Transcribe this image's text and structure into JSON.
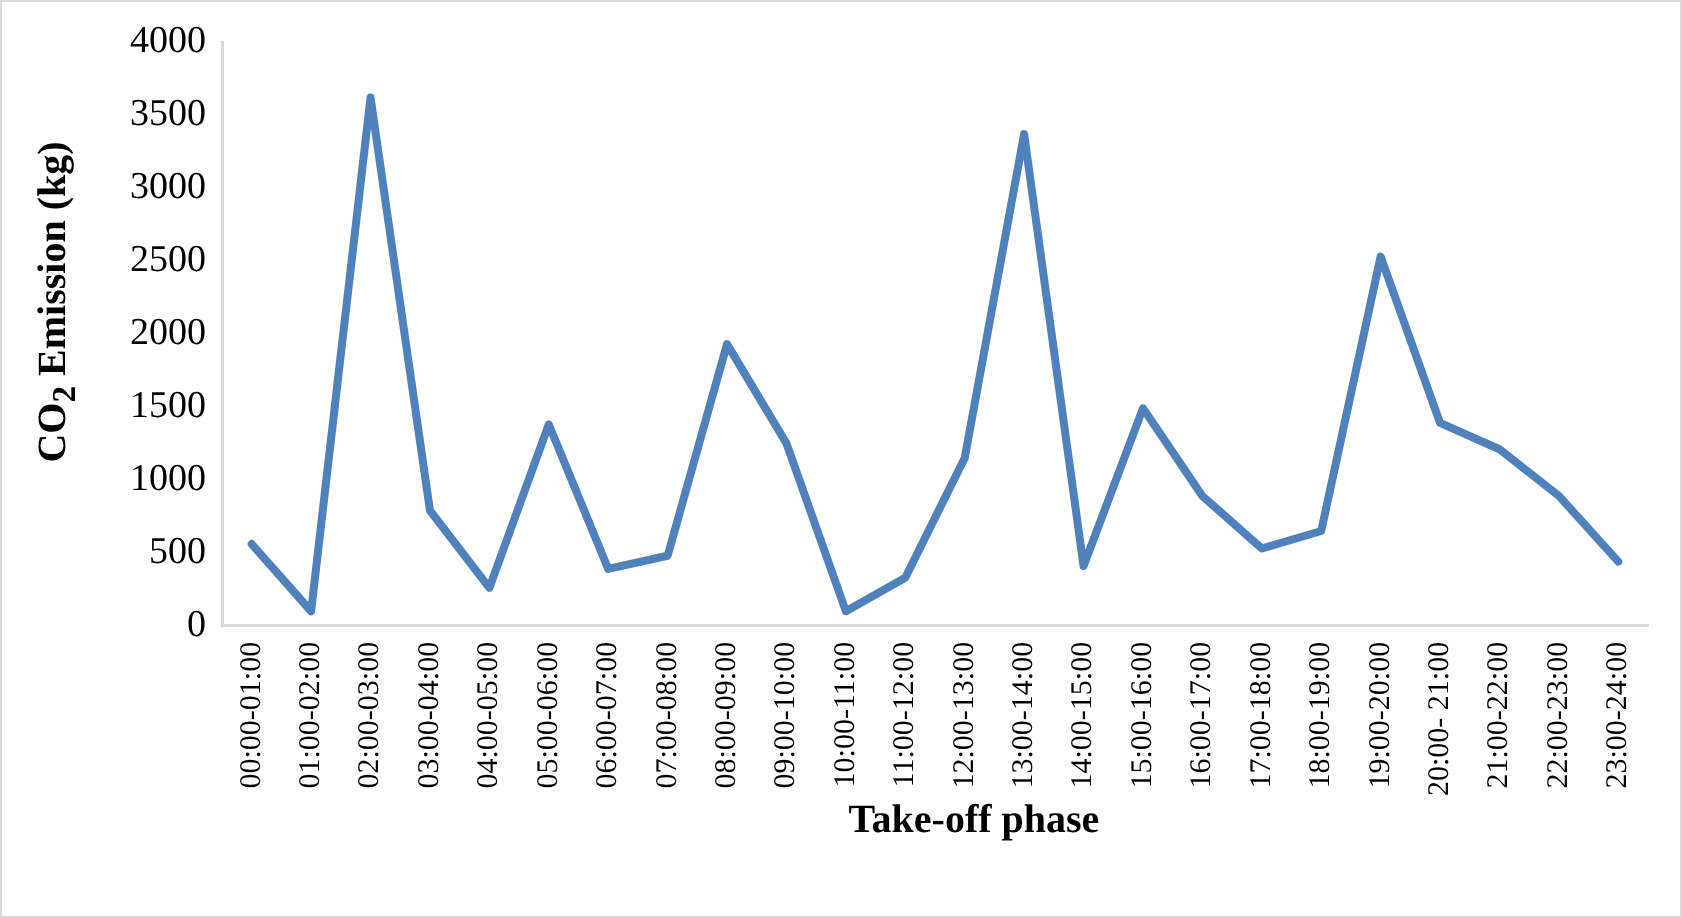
{
  "chart_data": {
    "type": "line",
    "xlabel": "Take-off phase",
    "ylabel": "CO$_{2}$ Emission (kg)",
    "categories": [
      "00:00-01:00",
      "01:00-02:00",
      "02:00-03:00",
      "03:00-04:00",
      "04:00-05:00",
      "05:00-06:00",
      "06:00-07:00",
      "07:00-08:00",
      "08:00-09:00",
      "09:00-10:00",
      "10:00-11:00",
      "11:00-12:00",
      "12:00-13:00",
      "13:00-14:00",
      "14:00-15:00",
      "15:00-16:00",
      "16:00-17:00",
      "17:00-18:00",
      "18:00-19:00",
      "19:00-20:00",
      "20:00- 21:00",
      "21:00-22:00",
      "22:00-23:00",
      "23:00-24:00"
    ],
    "series": [
      {
        "color": "#4f81bd",
        "values": [
          560,
          100,
          3620,
          790,
          260,
          1380,
          390,
          480,
          1930,
          1250,
          100,
          330,
          1150,
          3370,
          410,
          1490,
          890,
          530,
          650,
          2530,
          1390,
          1210,
          890,
          440
        ]
      }
    ],
    "ylim": [
      0,
      4000
    ],
    "yticks": [
      0,
      500,
      1000,
      1500,
      2000,
      2500,
      3000,
      3500,
      4000
    ],
    "grid": false,
    "legend": false,
    "marker": "none",
    "line_style": "solid"
  }
}
